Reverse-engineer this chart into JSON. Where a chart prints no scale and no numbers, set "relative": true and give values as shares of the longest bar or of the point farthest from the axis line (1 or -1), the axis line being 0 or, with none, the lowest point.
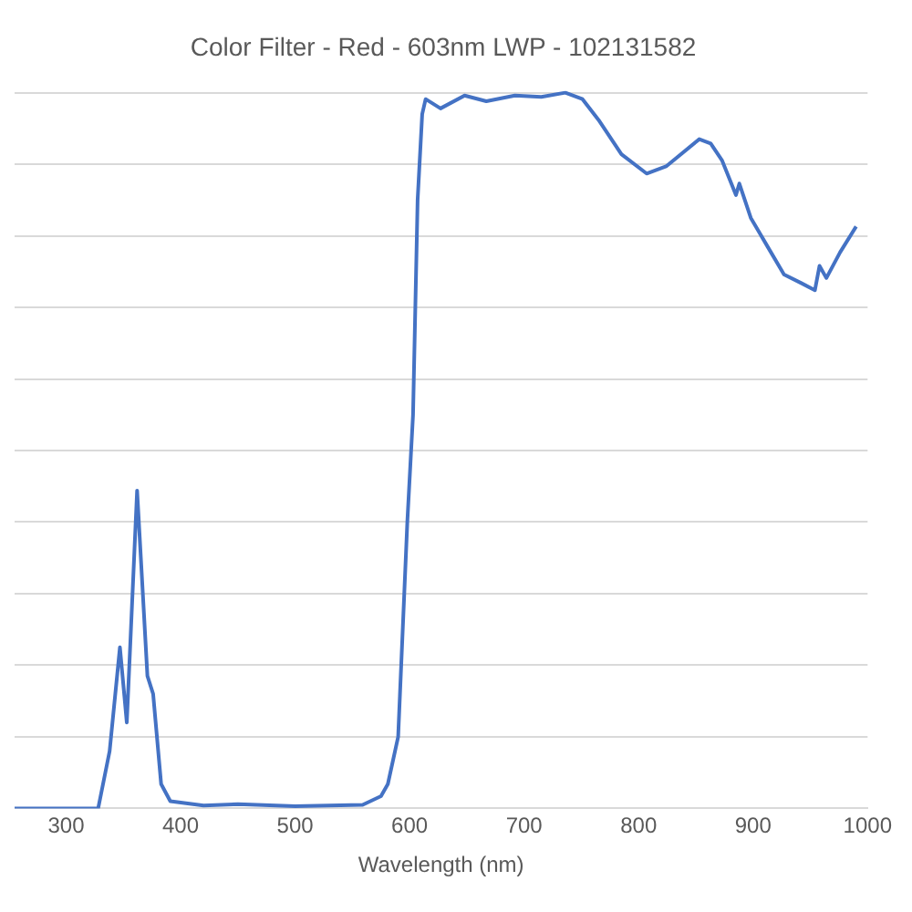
{
  "chart_data": {
    "type": "line",
    "title": "Color Filter - Red - 603nm LWP - 102131582",
    "xlabel": "Wavelength (nm)",
    "relative": true,
    "grid": "y",
    "legend": false,
    "marker": "none",
    "line_style": "solid",
    "xlim": [
      255,
      1000
    ],
    "xticks": [
      300,
      400,
      500,
      600,
      700,
      800,
      900,
      1000
    ],
    "series": [
      {
        "color": "#4472c4",
        "x": [
          255,
          300,
          328,
          338,
          347,
          353,
          362,
          371,
          376,
          383,
          391,
          420,
          450,
          500,
          559,
          575,
          581,
          590,
          598,
          603,
          607,
          611,
          614,
          627,
          648,
          667,
          692,
          715,
          736,
          751,
          765,
          785,
          807,
          824,
          853,
          863,
          873,
          885,
          888,
          898,
          913,
          927,
          942,
          954,
          958,
          964,
          976,
          990
        ],
        "values": [
          0,
          0,
          0,
          0.08,
          0.225,
          0.12,
          0.444,
          0.185,
          0.16,
          0.034,
          0.01,
          0.004,
          0.006,
          0.003,
          0.005,
          0.017,
          0.034,
          0.1,
          0.4,
          0.55,
          0.85,
          0.97,
          0.991,
          0.978,
          0.996,
          0.988,
          0.996,
          0.994,
          1,
          0.991,
          0.962,
          0.914,
          0.887,
          0.897,
          0.935,
          0.929,
          0.905,
          0.857,
          0.873,
          0.825,
          0.784,
          0.746,
          0.734,
          0.724,
          0.758,
          0.741,
          0.777,
          0.813
        ]
      }
    ]
  }
}
